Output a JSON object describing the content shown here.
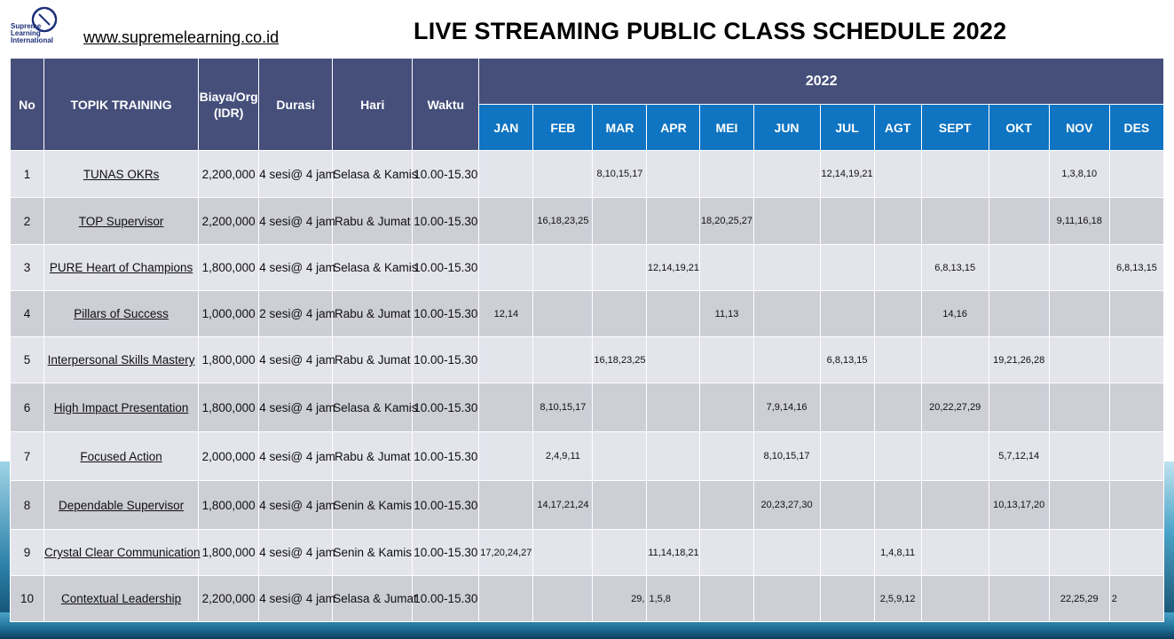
{
  "header": {
    "logo_text": [
      "Supreme",
      "Learning",
      "International"
    ],
    "website": "www.supremelearning.co.id",
    "title": "LIVE STREAMING PUBLIC CLASS SCHEDULE 2022"
  },
  "table": {
    "headers": {
      "no": "No",
      "topik": "TOPIK TRAINING",
      "biaya": "Biaya/Org (IDR)",
      "durasi": "Durasi",
      "hari": "Hari",
      "waktu": "Waktu",
      "year": "2022"
    },
    "months": [
      "JAN",
      "FEB",
      "MAR",
      "APR",
      "MEI",
      "JUN",
      "JUL",
      "AGT",
      "SEPT",
      "OKT",
      "NOV",
      "DES"
    ],
    "rows": [
      {
        "no": "1",
        "topik": "TUNAS OKRs",
        "biaya": "2,200,000",
        "durasi": "4 sesi@ 4 jam",
        "hari": "Selasa & Kamis",
        "waktu": "10.00-15.30",
        "m": [
          "",
          "",
          "8,10,15,17",
          "",
          "",
          "",
          "12,14,19,21",
          "",
          "",
          "",
          "1,3,8,10",
          ""
        ]
      },
      {
        "no": "2",
        "topik": "TOP Supervisor",
        "biaya": "2,200,000",
        "durasi": "4 sesi@ 4 jam",
        "hari": "Rabu & Jumat",
        "waktu": "10.00-15.30",
        "m": [
          "",
          "16,18,23,25",
          "",
          "",
          "18,20,25,27",
          "",
          "",
          "",
          "",
          "",
          "9,11,16,18",
          ""
        ]
      },
      {
        "no": "3",
        "topik": "PURE Heart of Champions",
        "biaya": "1,800,000",
        "durasi": "4 sesi@ 4 jam",
        "hari": "Selasa & Kamis",
        "waktu": "10.00-15.30",
        "m": [
          "",
          "",
          "",
          "12,14,19,21",
          "",
          "",
          "",
          "",
          "6,8,13,15",
          "",
          "",
          "6,8,13,15"
        ]
      },
      {
        "no": "4",
        "topik": "Pillars of Success",
        "biaya": "1,000,000",
        "durasi": "2 sesi@ 4 jam",
        "hari": "Rabu & Jumat",
        "waktu": "10.00-15.30",
        "m": [
          "12,14",
          "",
          "",
          "",
          "11,13",
          "",
          "",
          "",
          "14,16",
          "",
          "",
          ""
        ]
      },
      {
        "no": "5",
        "topik": "Interpersonal Skills Mastery",
        "biaya": "1,800,000",
        "durasi": "4 sesi@ 4 jam",
        "hari": "Rabu & Jumat",
        "waktu": "10.00-15.30",
        "m": [
          "",
          "",
          "16,18,23,25",
          "",
          "",
          "",
          "6,8,13,15",
          "",
          "",
          "19,21,26,28",
          "",
          ""
        ]
      },
      {
        "no": "6",
        "topik": "High Impact Presentation",
        "biaya": "1,800,000",
        "durasi": "4 sesi@ 4 jam",
        "hari": "Selasa & Kamis",
        "waktu": "10.00-15.30",
        "m": [
          "",
          "8,10,15,17",
          "",
          "",
          "",
          "7,9,14,16",
          "",
          "",
          "20,22,27,29",
          "",
          "",
          ""
        ]
      },
      {
        "no": "7",
        "topik": "Focused Action",
        "biaya": "2,000,000",
        "durasi": "4 sesi@ 4 jam",
        "hari": "Rabu & Jumat",
        "waktu": "10.00-15.30",
        "m": [
          "",
          "2,4,9,11",
          "",
          "",
          "",
          "8,10,15,17",
          "",
          "",
          "",
          "5,7,12,14",
          "",
          ""
        ]
      },
      {
        "no": "8",
        "topik": "Dependable Supervisor",
        "biaya": "1,800,000",
        "durasi": "4 sesi@ 4 jam",
        "hari": "Senin & Kamis",
        "waktu": "10.00-15.30",
        "m": [
          "",
          "14,17,21,24",
          "",
          "",
          "",
          "20,23,27,30",
          "",
          "",
          "",
          "10,13,17,20",
          "",
          ""
        ]
      },
      {
        "no": "9",
        "topik": "Crystal Clear Communication",
        "biaya": "1,800,000",
        "durasi": "4 sesi@ 4 jam",
        "hari": "Senin & Kamis",
        "waktu": "10.00-15.30",
        "m": [
          "17,20,24,27",
          "",
          "",
          "11,14,18,21",
          "",
          "",
          "",
          "1,4,8,11",
          "",
          "",
          "",
          ""
        ]
      },
      {
        "no": "10",
        "topik": "Contextual Leadership",
        "biaya": "2,200,000",
        "durasi": "4 sesi@ 4 jam",
        "hari": "Selasa & Jumat",
        "waktu": "10.00-15.30",
        "m": [
          "",
          "",
          "29,",
          "1,5,8",
          "",
          "",
          "",
          "2,5,9,12",
          "",
          "",
          "22,25,29",
          "2"
        ]
      }
    ]
  },
  "colors": {
    "header_dark": "#454f7a",
    "header_month": "#0f74c1",
    "row_light": "#e3e4ec",
    "row_dark": "#cdced6"
  }
}
